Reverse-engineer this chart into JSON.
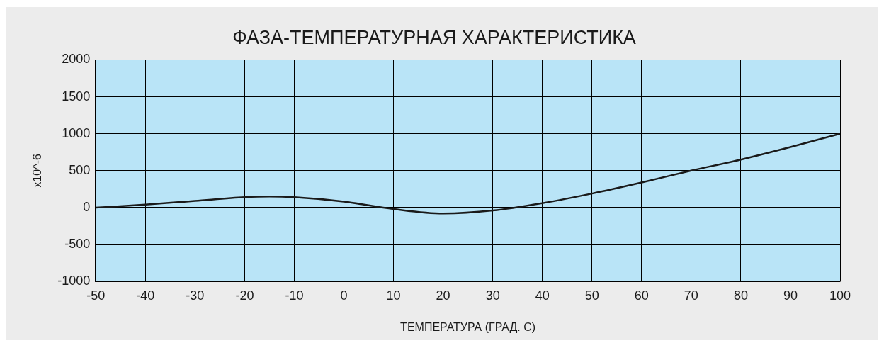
{
  "chart_data": {
    "type": "line",
    "title": "ФАЗА-ТЕМПЕРАТУРНАЯ ХАРАКТЕРИСТИКА",
    "xlabel": "ТЕМПЕРАТУРА (ГРАД. С)",
    "ylabel": "x10^-6",
    "x": [
      -50,
      -40,
      -30,
      -20,
      -15,
      -10,
      0,
      10,
      20,
      30,
      40,
      50,
      60,
      70,
      80,
      90,
      100
    ],
    "values": [
      0,
      40,
      90,
      140,
      150,
      140,
      80,
      -20,
      -80,
      -40,
      60,
      190,
      340,
      500,
      650,
      820,
      1000
    ],
    "color": "#1a1a1a",
    "xlim": [
      -50,
      100
    ],
    "xticks": [
      -50,
      -40,
      -30,
      -20,
      -10,
      0,
      10,
      20,
      30,
      40,
      50,
      60,
      70,
      80,
      90,
      100
    ],
    "ylim": [
      -1000,
      2000
    ],
    "yticks": [
      -1000,
      -500,
      0,
      500,
      1000,
      1500,
      2000
    ],
    "grid": true
  }
}
